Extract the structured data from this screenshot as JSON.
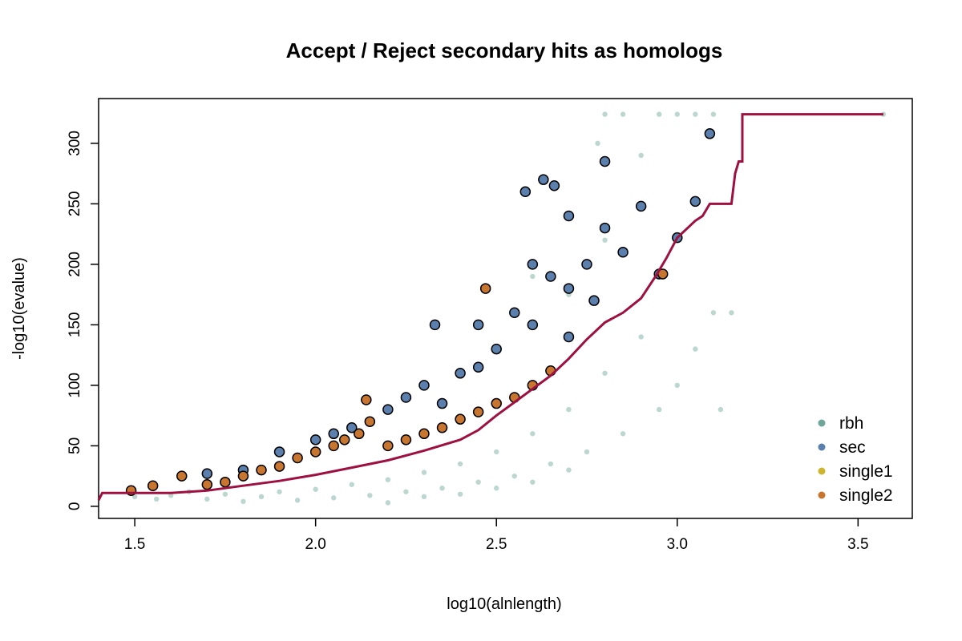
{
  "chart_data": {
    "type": "scatter",
    "title": "Accept / Reject secondary hits as homologs",
    "xlabel": "log10(alnlength)",
    "ylabel": "-log10(evalue)",
    "xlim": [
      1.4,
      3.65
    ],
    "ylim": [
      -10,
      337
    ],
    "xticks": [
      1.5,
      2.0,
      2.5,
      3.0,
      3.5
    ],
    "xtick_labels": [
      "1.5",
      "2.0",
      "2.5",
      "3.0",
      "3.5"
    ],
    "yticks": [
      0,
      50,
      100,
      150,
      200,
      250,
      300
    ],
    "ytick_labels": [
      "0",
      "50",
      "100",
      "150",
      "200",
      "250",
      "300"
    ],
    "grid": false,
    "legend_position": "bottom-right",
    "legend": [
      {
        "label": "rbh",
        "color": "#6fa59a"
      },
      {
        "label": "sec",
        "color": "#5b80ad"
      },
      {
        "label": "single1",
        "color": "#cdb52d"
      },
      {
        "label": "single2",
        "color": "#c8762f"
      }
    ],
    "series": [
      {
        "name": "rbh",
        "color": "#8fbab1",
        "points": [
          [
            1.5,
            8
          ],
          [
            1.56,
            6
          ],
          [
            1.6,
            9
          ],
          [
            1.65,
            12
          ],
          [
            1.7,
            6
          ],
          [
            1.75,
            10
          ],
          [
            1.8,
            4
          ],
          [
            1.85,
            8
          ],
          [
            1.9,
            12
          ],
          [
            1.95,
            5
          ],
          [
            2.0,
            14
          ],
          [
            2.05,
            7
          ],
          [
            2.1,
            18
          ],
          [
            2.15,
            9
          ],
          [
            2.2,
            22
          ],
          [
            2.25,
            12
          ],
          [
            2.3,
            28
          ],
          [
            2.35,
            15
          ],
          [
            2.4,
            35
          ],
          [
            2.45,
            20
          ],
          [
            2.5,
            45
          ],
          [
            2.55,
            25
          ],
          [
            2.6,
            60
          ],
          [
            2.65,
            35
          ],
          [
            2.7,
            80
          ],
          [
            2.75,
            45
          ],
          [
            2.8,
            110
          ],
          [
            2.85,
            60
          ],
          [
            2.9,
            140
          ],
          [
            2.95,
            80
          ],
          [
            3.0,
            100
          ],
          [
            3.05,
            130
          ],
          [
            3.1,
            160
          ],
          [
            3.12,
            80
          ],
          [
            3.15,
            160
          ],
          [
            2.2,
            3
          ],
          [
            2.3,
            8
          ],
          [
            2.4,
            10
          ],
          [
            2.5,
            15
          ],
          [
            2.6,
            20
          ],
          [
            2.7,
            30
          ],
          [
            2.6,
            190
          ],
          [
            2.7,
            175
          ],
          [
            2.8,
            220
          ],
          [
            2.8,
            324
          ],
          [
            2.95,
            324
          ],
          [
            3.0,
            324
          ],
          [
            3.05,
            324
          ],
          [
            3.1,
            324
          ],
          [
            2.85,
            324
          ],
          [
            2.9,
            290
          ],
          [
            2.78,
            300
          ],
          [
            3.57,
            324
          ]
        ]
      },
      {
        "name": "sec",
        "color": "#5b80ad",
        "points": [
          [
            1.7,
            27
          ],
          [
            1.8,
            30
          ],
          [
            1.9,
            45
          ],
          [
            2.0,
            55
          ],
          [
            2.05,
            60
          ],
          [
            2.1,
            65
          ],
          [
            2.2,
            80
          ],
          [
            2.25,
            90
          ],
          [
            2.3,
            100
          ],
          [
            2.35,
            85
          ],
          [
            2.4,
            110
          ],
          [
            2.45,
            115
          ],
          [
            2.5,
            130
          ],
          [
            2.55,
            160
          ],
          [
            2.6,
            200
          ],
          [
            2.65,
            190
          ],
          [
            2.7,
            180
          ],
          [
            2.75,
            200
          ],
          [
            2.8,
            230
          ],
          [
            2.85,
            210
          ],
          [
            2.58,
            260
          ],
          [
            2.63,
            270
          ],
          [
            2.66,
            265
          ],
          [
            2.7,
            240
          ],
          [
            2.8,
            285
          ],
          [
            2.9,
            248
          ],
          [
            3.05,
            252
          ],
          [
            3.09,
            308
          ],
          [
            2.95,
            192
          ],
          [
            3.0,
            222
          ],
          [
            2.45,
            150
          ],
          [
            2.33,
            150
          ],
          [
            2.6,
            150
          ],
          [
            2.7,
            140
          ],
          [
            2.77,
            170
          ]
        ]
      },
      {
        "name": "single2",
        "color": "#c8762f",
        "points": [
          [
            1.49,
            13
          ],
          [
            1.55,
            17
          ],
          [
            1.63,
            25
          ],
          [
            1.7,
            18
          ],
          [
            1.75,
            20
          ],
          [
            1.8,
            25
          ],
          [
            1.85,
            30
          ],
          [
            1.9,
            33
          ],
          [
            1.95,
            40
          ],
          [
            2.0,
            45
          ],
          [
            2.05,
            50
          ],
          [
            2.08,
            55
          ],
          [
            2.12,
            60
          ],
          [
            2.14,
            88
          ],
          [
            2.15,
            70
          ],
          [
            2.2,
            50
          ],
          [
            2.25,
            55
          ],
          [
            2.3,
            60
          ],
          [
            2.35,
            65
          ],
          [
            2.4,
            72
          ],
          [
            2.45,
            78
          ],
          [
            2.5,
            85
          ],
          [
            2.55,
            90
          ],
          [
            2.6,
            100
          ],
          [
            2.65,
            112
          ],
          [
            2.47,
            180
          ],
          [
            2.96,
            192
          ]
        ]
      }
    ],
    "threshold_line": {
      "name": "threshold",
      "color": "#9e1040",
      "points": [
        [
          1.4,
          5
        ],
        [
          1.41,
          11
        ],
        [
          1.6,
          11
        ],
        [
          1.7,
          13
        ],
        [
          1.8,
          17
        ],
        [
          1.9,
          21
        ],
        [
          2.0,
          26
        ],
        [
          2.1,
          32
        ],
        [
          2.2,
          38
        ],
        [
          2.3,
          46
        ],
        [
          2.4,
          55
        ],
        [
          2.45,
          63
        ],
        [
          2.5,
          75
        ],
        [
          2.55,
          86
        ],
        [
          2.6,
          97
        ],
        [
          2.65,
          108
        ],
        [
          2.7,
          122
        ],
        [
          2.75,
          138
        ],
        [
          2.8,
          152
        ],
        [
          2.85,
          160
        ],
        [
          2.9,
          172
        ],
        [
          2.94,
          190
        ],
        [
          2.97,
          205
        ],
        [
          3.0,
          222
        ],
        [
          3.05,
          236
        ],
        [
          3.07,
          240
        ],
        [
          3.09,
          250
        ],
        [
          3.15,
          250
        ],
        [
          3.16,
          275
        ],
        [
          3.17,
          285
        ],
        [
          3.18,
          285
        ],
        [
          3.18,
          324
        ],
        [
          3.57,
          324
        ]
      ]
    }
  }
}
